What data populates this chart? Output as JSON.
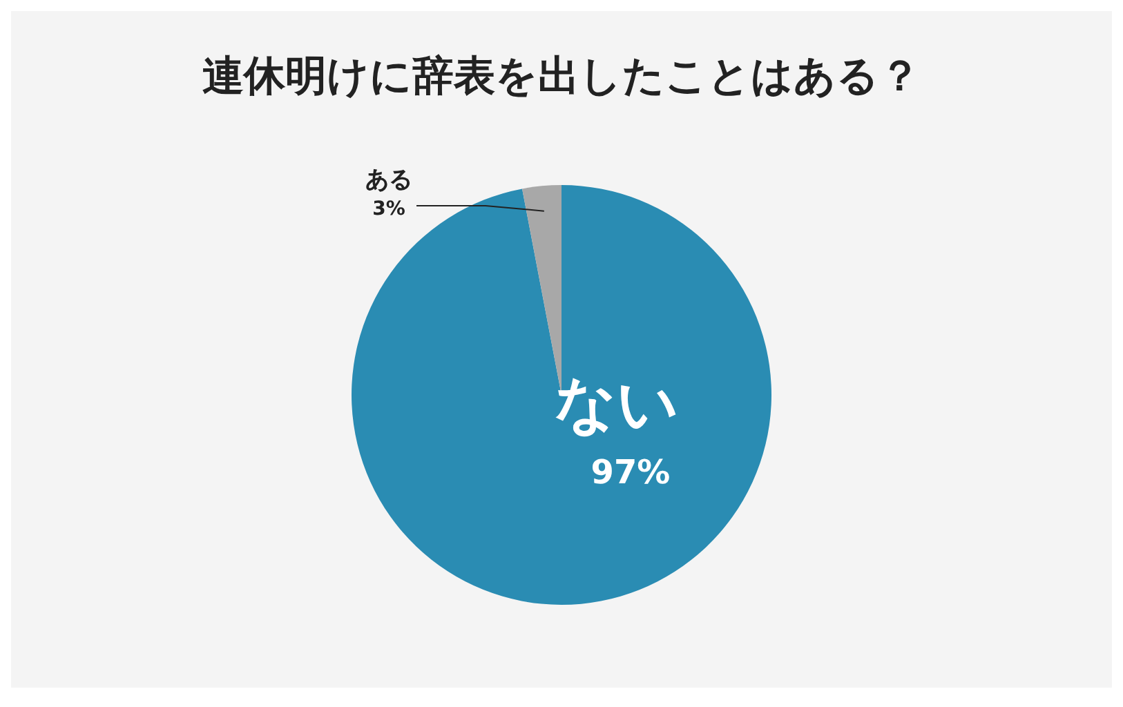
{
  "chart_data": {
    "type": "pie",
    "title": "連休明けに辞表を出したことはある？",
    "categories": [
      "ない",
      "ある"
    ],
    "values": [
      97,
      3
    ],
    "colors": [
      "#2a8cb3",
      "#a8a8a8"
    ],
    "value_labels": [
      "97%",
      "3%"
    ],
    "legend": false
  }
}
